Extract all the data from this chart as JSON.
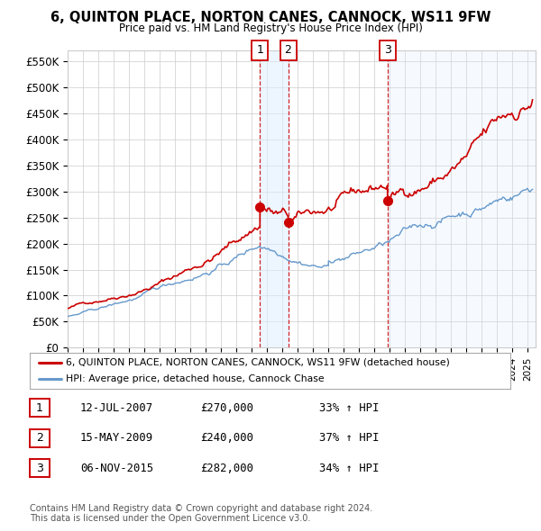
{
  "title": "6, QUINTON PLACE, NORTON CANES, CANNOCK, WS11 9FW",
  "subtitle": "Price paid vs. HM Land Registry's House Price Index (HPI)",
  "ylabel_ticks": [
    "£0",
    "£50K",
    "£100K",
    "£150K",
    "£200K",
    "£250K",
    "£300K",
    "£350K",
    "£400K",
    "£450K",
    "£500K",
    "£550K"
  ],
  "ytick_values": [
    0,
    50000,
    100000,
    150000,
    200000,
    250000,
    300000,
    350000,
    400000,
    450000,
    500000,
    550000
  ],
  "ylim": [
    0,
    570000
  ],
  "xlim_start": 1995.0,
  "xlim_end": 2025.5,
  "sale_dates": [
    2007.535,
    2009.37,
    2015.846
  ],
  "sale_prices": [
    270000,
    240000,
    282000
  ],
  "sale_labels": [
    "1",
    "2",
    "3"
  ],
  "legend_line1": "6, QUINTON PLACE, NORTON CANES, CANNOCK, WS11 9FW (detached house)",
  "legend_line2": "HPI: Average price, detached house, Cannock Chase",
  "table_data": [
    [
      "1",
      "12-JUL-2007",
      "£270,000",
      "33% ↑ HPI"
    ],
    [
      "2",
      "15-MAY-2009",
      "£240,000",
      "37% ↑ HPI"
    ],
    [
      "3",
      "06-NOV-2015",
      "£282,000",
      "34% ↑ HPI"
    ]
  ],
  "footnote1": "Contains HM Land Registry data © Crown copyright and database right 2024.",
  "footnote2": "This data is licensed under the Open Government Licence v3.0.",
  "red_color": "#cc0000",
  "blue_color": "#6699cc",
  "blue_fill_color": "#ddeeff",
  "background_color": "#ffffff",
  "grid_color": "#cccccc",
  "vline_color": "#cc0000"
}
